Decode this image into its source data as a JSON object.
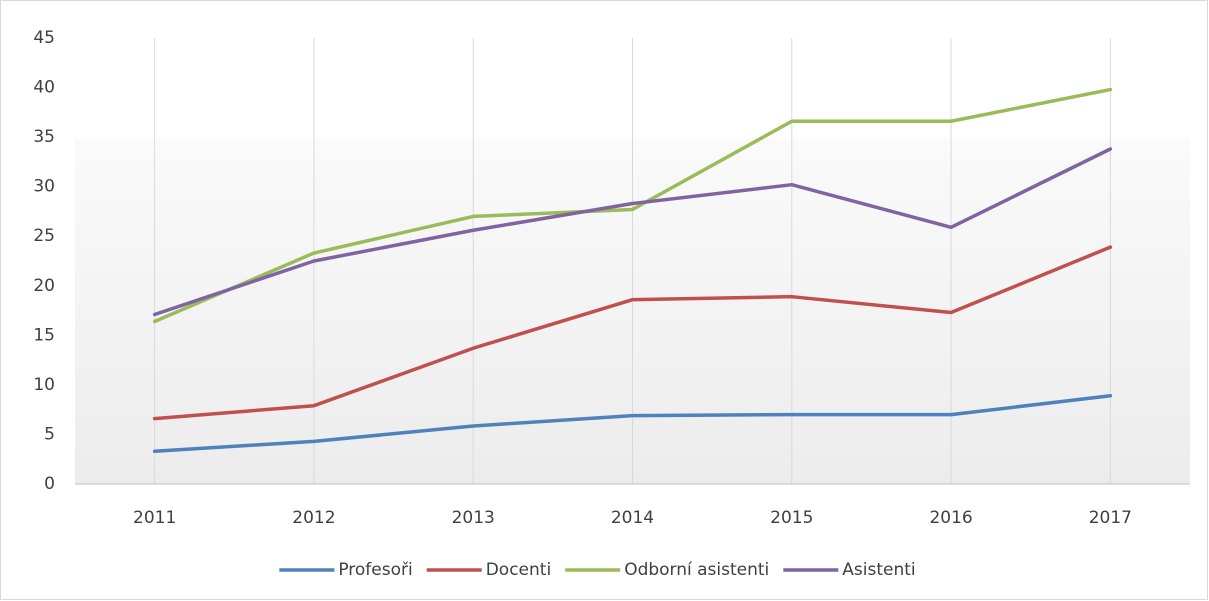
{
  "chart_data": {
    "type": "line",
    "categories": [
      "2011",
      "2012",
      "2013",
      "2014",
      "2015",
      "2016",
      "2017"
    ],
    "series": [
      {
        "name": "Profesoři",
        "color": "#4f81bd",
        "values": [
          3.3,
          4.3,
          5.85,
          6.9,
          7.0,
          7.0,
          8.9
        ]
      },
      {
        "name": "Docenti",
        "color": "#c0504d",
        "values": [
          6.6,
          7.9,
          13.7,
          18.6,
          18.9,
          17.3,
          23.9
        ]
      },
      {
        "name": "Odborní asistenti",
        "color": "#9bbb59",
        "values": [
          16.4,
          23.3,
          27.0,
          27.7,
          36.6,
          36.6,
          39.8
        ]
      },
      {
        "name": "Asistenti",
        "color": "#8064a2",
        "values": [
          17.1,
          22.5,
          25.6,
          28.3,
          30.2,
          25.9,
          33.8
        ]
      }
    ],
    "ylim": [
      0,
      45
    ],
    "yticks": [
      0,
      5,
      10,
      15,
      20,
      25,
      30,
      35,
      40,
      45
    ],
    "grid": "vertical",
    "legend": "bottom"
  }
}
